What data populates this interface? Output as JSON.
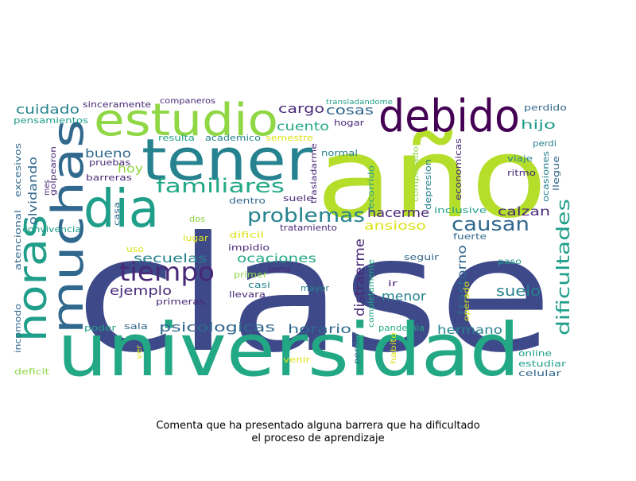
{
  "caption": {
    "line1": "Comenta que ha presentado alguna barrera que ha dificultado",
    "line2": "el proceso de aprendizaje"
  },
  "palette": {
    "purple": "#440154",
    "indigo": "#482878",
    "violet": "#472c7a",
    "blue": "#3e4989",
    "slate": "#31688e",
    "teal": "#26828e",
    "cyan": "#1f9e89",
    "green": "#22a884",
    "lime": "#6ece58",
    "yellowgreen": "#b5de2b",
    "yellow": "#dde318",
    "olive": "#8fd744"
  },
  "words": [
    {
      "text": "clase",
      "color": "blue"
    },
    {
      "text": "año",
      "color": "yellowgreen"
    },
    {
      "text": "universidad",
      "color": "green"
    },
    {
      "text": "tener",
      "color": "teal"
    },
    {
      "text": "debido",
      "color": "purple"
    },
    {
      "text": "estudio",
      "color": "olive"
    },
    {
      "text": "dia",
      "color": "cyan"
    },
    {
      "text": "muchas",
      "color": "slate"
    },
    {
      "text": "horas",
      "color": "cyan"
    },
    {
      "text": "tiempo",
      "color": "indigo"
    },
    {
      "text": "problemas",
      "color": "teal"
    },
    {
      "text": "familiares",
      "color": "green"
    },
    {
      "text": "dificultades",
      "color": "cyan"
    },
    {
      "text": "causan",
      "color": "slate"
    },
    {
      "text": "cuidado",
      "color": "teal"
    },
    {
      "text": "cargo",
      "color": "indigo"
    },
    {
      "text": "cosas",
      "color": "slate"
    },
    {
      "text": "cuento",
      "color": "green"
    },
    {
      "text": "hijo",
      "color": "cyan"
    },
    {
      "text": "bueno",
      "color": "slate"
    },
    {
      "text": "hoy",
      "color": "olive"
    },
    {
      "text": "olvidando",
      "color": "slate"
    },
    {
      "text": "hacerme",
      "color": "indigo"
    },
    {
      "text": "calzan",
      "color": "indigo"
    },
    {
      "text": "ansioso",
      "color": "yellow"
    },
    {
      "text": "secuelas",
      "color": "teal"
    },
    {
      "text": "ocaciones",
      "color": "green"
    },
    {
      "text": "ejemplo",
      "color": "indigo"
    },
    {
      "text": "distraerme",
      "color": "indigo"
    },
    {
      "text": "menor",
      "color": "teal"
    },
    {
      "text": "trastorno",
      "color": "slate"
    },
    {
      "text": "suelo",
      "color": "teal"
    },
    {
      "text": "psicologicas",
      "color": "slate"
    },
    {
      "text": "horario",
      "color": "slate"
    },
    {
      "text": "hermano",
      "color": "teal"
    },
    {
      "text": "sinceramente",
      "color": "indigo"
    },
    {
      "text": "companeros",
      "color": "indigo"
    },
    {
      "text": "transladandome",
      "color": "cyan"
    },
    {
      "text": "perdido",
      "color": "slate"
    },
    {
      "text": "pensamientos",
      "color": "cyan"
    },
    {
      "text": "hogar",
      "color": "indigo"
    },
    {
      "text": "resulta",
      "color": "cyan"
    },
    {
      "text": "academico",
      "color": "teal"
    },
    {
      "text": "semestre",
      "color": "yellow"
    },
    {
      "text": "perdi",
      "color": "teal"
    },
    {
      "text": "normal",
      "color": "teal"
    },
    {
      "text": "pruebas",
      "color": "indigo"
    },
    {
      "text": "barreras",
      "color": "indigo"
    },
    {
      "text": "viaje",
      "color": "teal"
    },
    {
      "text": "ritmo",
      "color": "indigo"
    },
    {
      "text": "dentro",
      "color": "slate"
    },
    {
      "text": "suele",
      "color": "indigo"
    },
    {
      "text": "inclusive",
      "color": "cyan"
    },
    {
      "text": "tratamiento",
      "color": "indigo"
    },
    {
      "text": "convivencia",
      "color": "cyan"
    },
    {
      "text": "dos",
      "color": "olive"
    },
    {
      "text": "lugar",
      "color": "yellow"
    },
    {
      "text": "dificil",
      "color": "yellow"
    },
    {
      "text": "fuerte",
      "color": "slate"
    },
    {
      "text": "impidio",
      "color": "indigo"
    },
    {
      "text": "seguir",
      "color": "slate"
    },
    {
      "text": "uso",
      "color": "yellow"
    },
    {
      "text": "paso",
      "color": "cyan"
    },
    {
      "text": "tema",
      "color": "indigo"
    },
    {
      "text": "primer",
      "color": "olive"
    },
    {
      "text": "casi",
      "color": "teal"
    },
    {
      "text": "mayor",
      "color": "teal"
    },
    {
      "text": "ir",
      "color": "indigo"
    },
    {
      "text": "llevara",
      "color": "indigo"
    },
    {
      "text": "primeras",
      "color": "indigo"
    },
    {
      "text": "poder",
      "color": "cyan"
    },
    {
      "text": "sala",
      "color": "slate"
    },
    {
      "text": "pandemia",
      "color": "green"
    },
    {
      "text": "online",
      "color": "cyan"
    },
    {
      "text": "estudiar",
      "color": "cyan"
    },
    {
      "text": "celular",
      "color": "slate"
    },
    {
      "text": "deficit",
      "color": "olive"
    },
    {
      "text": "venir",
      "color": "yellow"
    },
    {
      "text": "ver",
      "color": "yellow"
    },
    {
      "text": "excesivos",
      "color": "slate"
    },
    {
      "text": "golpearon",
      "color": "indigo"
    },
    {
      "text": "mes",
      "color": "indigo"
    },
    {
      "text": "atencional",
      "color": "slate"
    },
    {
      "text": "incomodo",
      "color": "slate"
    },
    {
      "text": "casa",
      "color": "slate"
    },
    {
      "text": "trasladarme",
      "color": "indigo"
    },
    {
      "text": "recorrido",
      "color": "cyan"
    },
    {
      "text": "complicado",
      "color": "olive"
    },
    {
      "text": "depresion",
      "color": "teal"
    },
    {
      "text": "economicas",
      "color": "indigo"
    },
    {
      "text": "ocasiones",
      "color": "teal"
    },
    {
      "text": "llegue",
      "color": "slate"
    },
    {
      "text": "completamente",
      "color": "green"
    },
    {
      "text": "operado",
      "color": "yellow"
    },
    {
      "text": "perder",
      "color": "slate"
    },
    {
      "text": "habito",
      "color": "yellow"
    }
  ]
}
